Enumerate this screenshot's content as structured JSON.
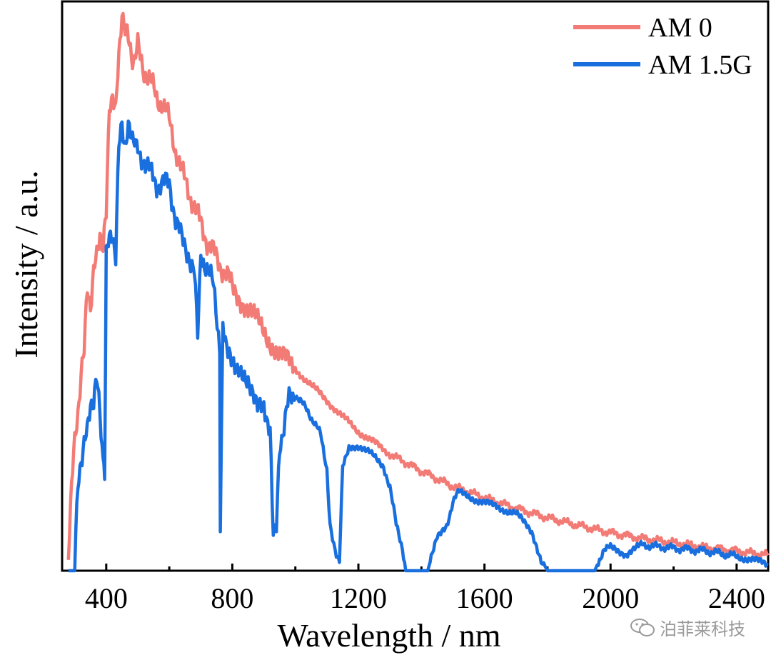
{
  "chart_data": {
    "type": "line",
    "title": "",
    "xlabel": "Wavelength / nm",
    "ylabel": "Intensity / a.u.",
    "xlim": [
      260,
      2500
    ],
    "ylim": [
      0,
      1.0
    ],
    "xticks": [
      400,
      800,
      1200,
      1600,
      2000,
      2400
    ],
    "xtick_labels": [
      "400",
      "800",
      "1200",
      "1600",
      "2000",
      "2400"
    ],
    "yticks_shown": false,
    "legend_position": "top-right",
    "series": [
      {
        "name": "AM 0",
        "color": "#f37b76",
        "x": [
          280,
          290,
          300,
          310,
          320,
          330,
          340,
          350,
          360,
          370,
          380,
          390,
          400,
          410,
          420,
          430,
          440,
          450,
          460,
          470,
          480,
          490,
          500,
          520,
          540,
          560,
          580,
          600,
          620,
          640,
          660,
          680,
          700,
          720,
          740,
          760,
          780,
          800,
          850,
          900,
          950,
          1000,
          1050,
          1100,
          1150,
          1200,
          1250,
          1300,
          1400,
          1500,
          1600,
          1700,
          1800,
          1900,
          2000,
          2100,
          2200,
          2300,
          2400,
          2500
        ],
        "y": [
          0.04,
          0.15,
          0.22,
          0.28,
          0.35,
          0.38,
          0.5,
          0.47,
          0.52,
          0.55,
          0.6,
          0.57,
          0.62,
          0.82,
          0.84,
          0.8,
          0.9,
          0.99,
          0.95,
          0.93,
          0.91,
          0.9,
          0.92,
          0.88,
          0.86,
          0.83,
          0.82,
          0.79,
          0.74,
          0.7,
          0.67,
          0.64,
          0.61,
          0.58,
          0.56,
          0.54,
          0.52,
          0.5,
          0.46,
          0.42,
          0.38,
          0.355,
          0.325,
          0.3,
          0.27,
          0.245,
          0.225,
          0.205,
          0.175,
          0.148,
          0.128,
          0.11,
          0.093,
          0.079,
          0.067,
          0.057,
          0.049,
          0.041,
          0.035,
          0.027
        ]
      },
      {
        "name": "AM 1.5G",
        "color": "#1a6fdf",
        "x": [
          280,
          300,
          310,
          320,
          330,
          340,
          350,
          360,
          370,
          380,
          390,
          395,
          400,
          410,
          420,
          430,
          440,
          450,
          460,
          470,
          480,
          490,
          500,
          520,
          540,
          560,
          580,
          600,
          620,
          640,
          660,
          680,
          690,
          700,
          720,
          740,
          760,
          762,
          770,
          790,
          800,
          820,
          850,
          880,
          900,
          920,
          930,
          940,
          950,
          960,
          980,
          1000,
          1040,
          1080,
          1100,
          1110,
          1130,
          1140,
          1150,
          1170,
          1200,
          1250,
          1280,
          1300,
          1320,
          1340,
          1350,
          1400,
          1420,
          1450,
          1480,
          1500,
          1520,
          1550,
          1600,
          1650,
          1700,
          1750,
          1780,
          1800,
          1850,
          1950,
          1980,
          2000,
          2050,
          2100,
          2200,
          2300,
          2400,
          2450,
          2500
        ],
        "y": [
          0.0,
          0.0,
          0.15,
          0.2,
          0.22,
          0.24,
          0.3,
          0.3,
          0.33,
          0.28,
          0.2,
          0.17,
          0.55,
          0.58,
          0.6,
          0.55,
          0.74,
          0.79,
          0.75,
          0.77,
          0.76,
          0.77,
          0.74,
          0.72,
          0.7,
          0.68,
          0.68,
          0.68,
          0.62,
          0.58,
          0.56,
          0.52,
          0.43,
          0.56,
          0.53,
          0.5,
          0.4,
          0.07,
          0.43,
          0.39,
          0.38,
          0.35,
          0.32,
          0.28,
          0.3,
          0.24,
          0.08,
          0.08,
          0.2,
          0.24,
          0.3,
          0.31,
          0.28,
          0.24,
          0.18,
          0.08,
          0.03,
          0.02,
          0.18,
          0.22,
          0.22,
          0.2,
          0.18,
          0.15,
          0.08,
          0.04,
          0.0,
          0.0,
          0.0,
          0.06,
          0.08,
          0.12,
          0.14,
          0.13,
          0.12,
          0.11,
          0.1,
          0.07,
          0.02,
          0.0,
          0.0,
          0.0,
          0.04,
          0.04,
          0.03,
          0.045,
          0.04,
          0.035,
          0.025,
          0.02,
          0.01
        ]
      }
    ]
  },
  "watermark": {
    "text": "泊菲莱科技",
    "icon": "wechat-icon"
  }
}
